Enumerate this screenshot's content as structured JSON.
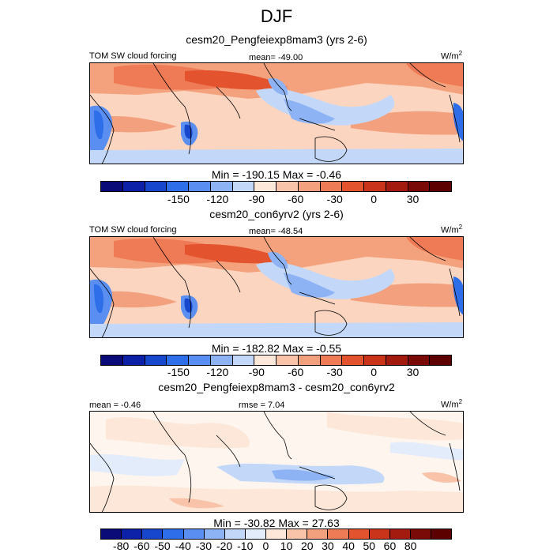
{
  "season": "DJF",
  "panels": [
    {
      "id": "test",
      "title": "cesm20_Pengfeiexp8mam3 (yrs 2-6)",
      "left_label": "TOM SW cloud forcing",
      "center_label": "mean= -49.00",
      "units_base": "W/m",
      "units_sup": "2",
      "minmax": "Min = -190.15 Max =  -0.46",
      "colorbar": "abs"
    },
    {
      "id": "control",
      "title": "cesm20_con6yrv2 (yrs 2-6)",
      "left_label": "TOM SW cloud forcing",
      "center_label": "mean= -48.54",
      "units_base": "W/m",
      "units_sup": "2",
      "minmax": "Min = -182.82 Max =  -0.55",
      "colorbar": "abs"
    },
    {
      "id": "difference",
      "title": "cesm20_Pengfeiexp8mam3 - cesm20_con6yrv2",
      "left_label": "mean =  -0.46",
      "center_label": "rmse =   7.04",
      "units_base": "W/m",
      "units_sup": "2",
      "minmax": "Min = -30.82 Max = 27.63",
      "colorbar": "diff"
    }
  ],
  "colorbars": {
    "abs": {
      "colors": [
        "#0a0a78",
        "#0d21a8",
        "#1747cc",
        "#2e6ee8",
        "#5a8ef0",
        "#8db3f5",
        "#c3d8f8",
        "#fde7d8",
        "#f8c3a9",
        "#f3a07e",
        "#ee7b55",
        "#e3532e",
        "#c9341a",
        "#a31a0e",
        "#7a0a08",
        "#5c0000"
      ],
      "tick_labels": [
        "-150",
        "-120",
        "-90",
        "-60",
        "-30",
        "0",
        "30"
      ],
      "tick_values": [
        -150,
        -120,
        -90,
        -60,
        -30,
        0,
        30
      ],
      "min": -210,
      "max": 60
    },
    "diff": {
      "colors": [
        "#0a0a78",
        "#0d21a8",
        "#1747cc",
        "#2e6ee8",
        "#5a8ef0",
        "#8db3f5",
        "#c3d8f8",
        "#e3ecfb",
        "#fde7d8",
        "#f8c3a9",
        "#f3a07e",
        "#ee7b55",
        "#e3532e",
        "#c9341a",
        "#a31a0e",
        "#7a0a08",
        "#5c0000"
      ],
      "tick_labels": [
        "-80",
        "-60",
        "-50",
        "-40",
        "-30",
        "-20",
        "-10",
        "0",
        "10",
        "20",
        "30",
        "40",
        "50",
        "60",
        "80"
      ],
      "tick_values": [
        -80,
        -60,
        -50,
        -40,
        -30,
        -20,
        -10,
        0,
        10,
        20,
        30,
        40,
        50,
        60,
        80
      ],
      "min": -100,
      "max": 100
    }
  }
}
